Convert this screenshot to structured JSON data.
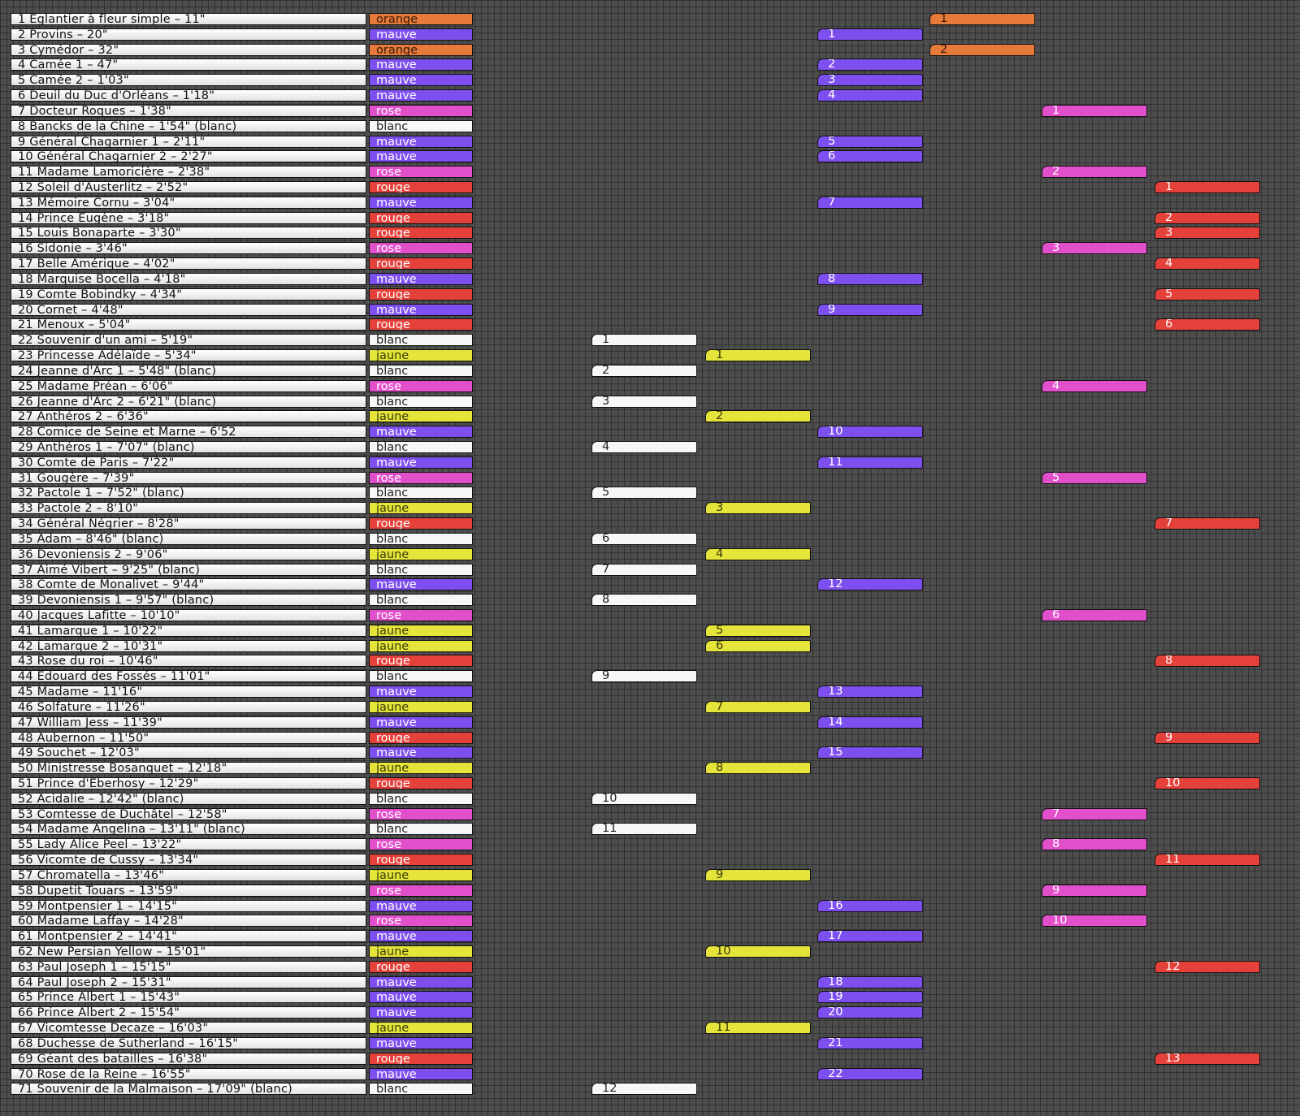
{
  "rows": [
    {
      "title": "1 Eglantier à fleur simple – 11\"",
      "color_label": "orange",
      "color": "orange",
      "seq": "1"
    },
    {
      "title": "2 Provins – 20\"",
      "color_label": "mauve",
      "color": "mauve",
      "seq": "1"
    },
    {
      "title": "3 Cymédor – 32\"",
      "color_label": "orange",
      "color": "orange",
      "seq": "2"
    },
    {
      "title": "4 Camée 1 – 47\"",
      "color_label": "mauve",
      "color": "mauve",
      "seq": "2"
    },
    {
      "title": "5 Camée 2 – 1'03\"",
      "color_label": "mauve",
      "color": "mauve",
      "seq": "3"
    },
    {
      "title": "6 Deuil du Duc d'Orléans – 1'18\"",
      "color_label": "mauve",
      "color": "mauve",
      "seq": "4"
    },
    {
      "title": "7 Docteur Roques – 1'38\"",
      "color_label": "rose",
      "color": "rose",
      "seq": "1"
    },
    {
      "title": "8 Bancks de la Chine – 1'54\" (blanc)",
      "color_label": "blanc",
      "color": "blanc-none",
      "seq": ""
    },
    {
      "title": "9 Général Chagarnier 1 – 2'11\"",
      "color_label": "mauve",
      "color": "mauve",
      "seq": "5"
    },
    {
      "title": "10 Général Chagarnier 2 – 2'27\"",
      "color_label": "mauve",
      "color": "mauve",
      "seq": "6"
    },
    {
      "title": "11 Madame Lamoricière – 2'38\"",
      "color_label": "rose",
      "color": "rose",
      "seq": "2"
    },
    {
      "title": "12 Soleil d'Austerlitz – 2'52\"",
      "color_label": "rouge",
      "color": "rouge",
      "seq": "1"
    },
    {
      "title": "13 Mémoire Cornu – 3'04\"",
      "color_label": "mauve",
      "color": "mauve",
      "seq": "7"
    },
    {
      "title": "14 Prince Eugène – 3'18\"",
      "color_label": "rouge",
      "color": "rouge",
      "seq": "2"
    },
    {
      "title": "15 Louis Bonaparte – 3'30\"",
      "color_label": "rouge",
      "color": "rouge",
      "seq": "3"
    },
    {
      "title": "16 Sidonie – 3'46\"",
      "color_label": "rose",
      "color": "rose",
      "seq": "3"
    },
    {
      "title": "17 Belle Amérique – 4'02\"",
      "color_label": "rouge",
      "color": "rouge",
      "seq": "4"
    },
    {
      "title": "18 Marquise Bocella – 4'18\"",
      "color_label": "mauve",
      "color": "mauve",
      "seq": "8"
    },
    {
      "title": "19 Comte Bobindky – 4'34\"",
      "color_label": "rouge",
      "color": "rouge",
      "seq": "5"
    },
    {
      "title": "20 Cornet – 4'48\"",
      "color_label": "mauve",
      "color": "mauve",
      "seq": "9"
    },
    {
      "title": "21 Menoux – 5'04\"",
      "color_label": "rouge",
      "color": "rouge",
      "seq": "6"
    },
    {
      "title": "22 Souvenir d'un ami – 5'19\"",
      "color_label": "blanc",
      "color": "blanc",
      "seq": "1"
    },
    {
      "title": "23 Princesse Adélaïde – 5'34\"",
      "color_label": "jaune",
      "color": "jaune",
      "seq": "1"
    },
    {
      "title": "24 Jeanne d'Arc 1 – 5'48\" (blanc)",
      "color_label": "blanc",
      "color": "blanc",
      "seq": "2"
    },
    {
      "title": "25 Madame Préan – 6'06\"",
      "color_label": "rose",
      "color": "rose",
      "seq": "4"
    },
    {
      "title": "26 Jeanne d'Arc 2 – 6'21\" (blanc)",
      "color_label": "blanc",
      "color": "blanc",
      "seq": "3"
    },
    {
      "title": "27 Anthéros 2 – 6'36\"",
      "color_label": "jaune",
      "color": "jaune",
      "seq": "2"
    },
    {
      "title": "28 Comice de Seine et Marne – 6'52",
      "color_label": "mauve",
      "color": "mauve",
      "seq": "10"
    },
    {
      "title": "29 Anthéros 1 – 7'07\" (blanc)",
      "color_label": "blanc",
      "color": "blanc",
      "seq": "4"
    },
    {
      "title": "30 Comte de Paris – 7'22\"",
      "color_label": "mauve",
      "color": "mauve",
      "seq": "11"
    },
    {
      "title": "31 Gougère – 7'39\"",
      "color_label": "rose",
      "color": "rose",
      "seq": "5"
    },
    {
      "title": "32 Pactole 1 – 7'52\" (blanc)",
      "color_label": "blanc",
      "color": "blanc",
      "seq": "5"
    },
    {
      "title": "33 Pactole 2 – 8'10\"",
      "color_label": "jaune",
      "color": "jaune",
      "seq": "3"
    },
    {
      "title": "34 Général Négrier – 8'28\"",
      "color_label": "rouge",
      "color": "rouge",
      "seq": "7"
    },
    {
      "title": "35 Adam – 8'46\" (blanc)",
      "color_label": "blanc",
      "color": "blanc",
      "seq": "6"
    },
    {
      "title": "36 Devoniensis 2 – 9'06\"",
      "color_label": "jaune",
      "color": "jaune",
      "seq": "4"
    },
    {
      "title": "37 Aimé Vibert – 9'25\" (blanc)",
      "color_label": "blanc",
      "color": "blanc",
      "seq": "7"
    },
    {
      "title": "38 Comte de Monalivet – 9'44\"",
      "color_label": "mauve",
      "color": "mauve",
      "seq": "12"
    },
    {
      "title": "39 Devoniensis 1 – 9'57\" (blanc)",
      "color_label": "blanc",
      "color": "blanc",
      "seq": "8"
    },
    {
      "title": "40 Jacques Lafitte – 10'10\"",
      "color_label": "rose",
      "color": "rose",
      "seq": "6"
    },
    {
      "title": "41 Lamarque 1 – 10'22\"",
      "color_label": "jaune",
      "color": "jaune",
      "seq": "5"
    },
    {
      "title": "42 Lamarque 2 – 10'31\"",
      "color_label": "jaune",
      "color": "jaune",
      "seq": "6"
    },
    {
      "title": "43 Rose du roi – 10'46\"",
      "color_label": "rouge",
      "color": "rouge",
      "seq": "8"
    },
    {
      "title": "44 Edouard des Fossés – 11'01\"",
      "color_label": "blanc",
      "color": "blanc",
      "seq": "9"
    },
    {
      "title": "45 Madame – 11'16\"",
      "color_label": "mauve",
      "color": "mauve",
      "seq": "13"
    },
    {
      "title": "46 Solfature – 11'26\"",
      "color_label": "jaune",
      "color": "jaune",
      "seq": "7"
    },
    {
      "title": "47 William Jess – 11'39\"",
      "color_label": "mauve",
      "color": "mauve",
      "seq": "14"
    },
    {
      "title": "48 Aubernon – 11'50\"",
      "color_label": "rouge",
      "color": "rouge",
      "seq": "9"
    },
    {
      "title": "49 Souchet – 12'03\"",
      "color_label": "mauve",
      "color": "mauve",
      "seq": "15"
    },
    {
      "title": "50 Ministresse Bosanquet – 12'18\"",
      "color_label": "jaune",
      "color": "jaune",
      "seq": "8"
    },
    {
      "title": "51 Prince d'Eberhosy – 12'29\"",
      "color_label": "rouge",
      "color": "rouge",
      "seq": "10"
    },
    {
      "title": "52 Acidalie – 12'42\" (blanc)",
      "color_label": "blanc",
      "color": "blanc",
      "seq": "10"
    },
    {
      "title": "53 Comtesse de Duchâtel – 12'58\"",
      "color_label": "rose",
      "color": "rose",
      "seq": "7"
    },
    {
      "title": "54 Madame Angelina – 13'11\" (blanc)",
      "color_label": "blanc",
      "color": "blanc",
      "seq": "11"
    },
    {
      "title": "55 Lady Alice Peel – 13'22\"",
      "color_label": "rose",
      "color": "rose",
      "seq": "8"
    },
    {
      "title": "56 Vicomte de Cussy – 13'34\"",
      "color_label": "rouge",
      "color": "rouge",
      "seq": "11"
    },
    {
      "title": "57 Chromatella – 13'46\"",
      "color_label": "jaune",
      "color": "jaune",
      "seq": "9"
    },
    {
      "title": "58 Dupetit Touars – 13'59\"",
      "color_label": "rose",
      "color": "rose",
      "seq": "9"
    },
    {
      "title": "59 Montpensier 1 – 14'15\"",
      "color_label": "mauve",
      "color": "mauve",
      "seq": "16"
    },
    {
      "title": "60 Madame Laffay – 14'28\"",
      "color_label": "rose",
      "color": "rose",
      "seq": "10"
    },
    {
      "title": "61 Montpensier 2 – 14'41\"",
      "color_label": "mauve",
      "color": "mauve",
      "seq": "17"
    },
    {
      "title": "62 New Persian Yellow – 15'01\"",
      "color_label": "jaune",
      "color": "jaune",
      "seq": "10"
    },
    {
      "title": "63 Paul Joseph 1 – 15'15\"",
      "color_label": "rouge",
      "color": "rouge",
      "seq": "12"
    },
    {
      "title": "64 Paul Joseph 2 – 15'31\"",
      "color_label": "mauve",
      "color": "mauve",
      "seq": "18"
    },
    {
      "title": "65 Prince Albert 1 – 15'43\"",
      "color_label": "mauve",
      "color": "mauve",
      "seq": "19"
    },
    {
      "title": "66 Prince Albert 2 – 15'54\"",
      "color_label": "mauve",
      "color": "mauve",
      "seq": "20"
    },
    {
      "title": "67 Vicomtesse Decaze – 16'03\"",
      "color_label": "jaune",
      "color": "jaune",
      "seq": "11"
    },
    {
      "title": "68 Duchesse de Sutherland – 16'15\"",
      "color_label": "mauve",
      "color": "mauve",
      "seq": "21"
    },
    {
      "title": "69 Géant des batailles – 16'38\"",
      "color_label": "rouge",
      "color": "rouge",
      "seq": "13"
    },
    {
      "title": "70 Rose de la Reine – 16'55\"",
      "color_label": "mauve",
      "color": "mauve",
      "seq": "22"
    },
    {
      "title": "71 Souvenir de la Malmaison – 17'09\" (blanc)",
      "color_label": "blanc",
      "color": "blanc",
      "seq": "12"
    }
  ],
  "colors": {
    "orange": "#e57a3a",
    "mauve": "#7d4fee",
    "rose": "#e24fcb",
    "rouge": "#e5413b",
    "blanc": "#f7f7f7",
    "jaune": "#e4e43a"
  }
}
